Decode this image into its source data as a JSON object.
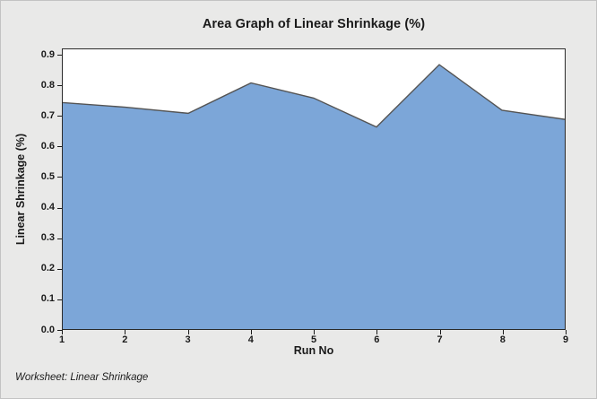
{
  "chart_data": {
    "type": "area",
    "title": "Area Graph of Linear Shrinkage (%)",
    "xlabel": "Run No",
    "ylabel": "Linear Shrinkage (%)",
    "x": [
      1,
      2,
      3,
      4,
      5,
      6,
      7,
      8,
      9
    ],
    "xtick_labels": [
      "1",
      "2",
      "3",
      "4",
      "5",
      "6",
      "7",
      "8",
      "9"
    ],
    "values": [
      0.745,
      0.73,
      0.71,
      0.81,
      0.76,
      0.665,
      0.87,
      0.72,
      0.69
    ],
    "series_name": "Linear Shrinkage",
    "ylim": [
      0,
      0.9
    ],
    "yticks": [
      0.0,
      0.1,
      0.2,
      0.3,
      0.4,
      0.5,
      0.6,
      0.7,
      0.8,
      0.9
    ],
    "ytick_labels": [
      "0.0",
      "0.1",
      "0.2",
      "0.3",
      "0.4",
      "0.5",
      "0.6",
      "0.7",
      "0.8",
      "0.9"
    ],
    "grid": false,
    "legend": "none",
    "colors": {
      "fill": "#7CA6D8",
      "outline": "#545454",
      "figure_background": "#E9E9E8",
      "plot_background": "#FFFFFF",
      "frame": "#2A2A2A",
      "text": "#1A1A1A"
    }
  },
  "footer": {
    "text": "Worksheet: Linear Shrinkage"
  }
}
